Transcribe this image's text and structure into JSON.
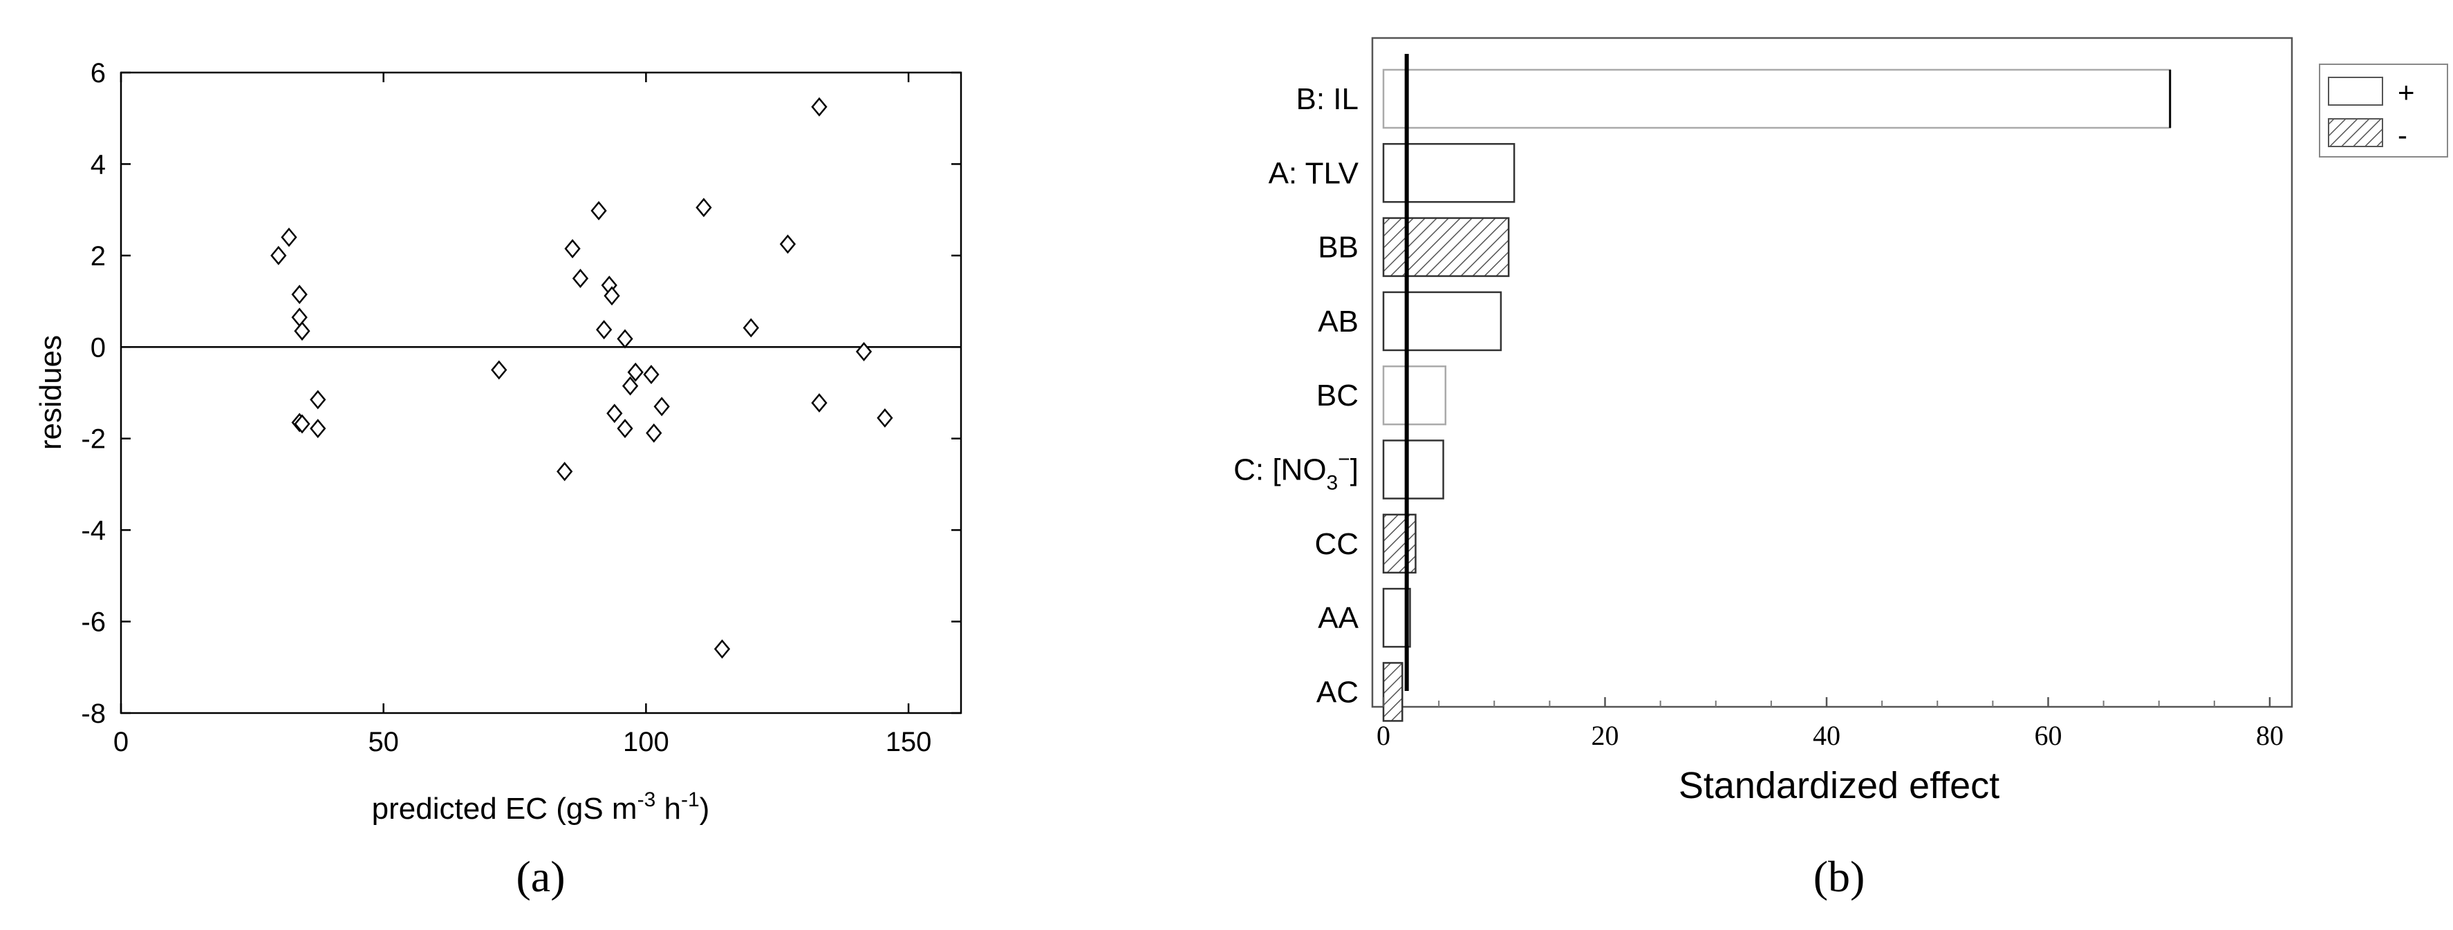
{
  "chart_data": [
    {
      "type": "scatter",
      "panel_label": "(a)",
      "xlabel": "predicted EC (gS m",
      "xlabel_sup1": "-3",
      "xlabel_mid": " h",
      "xlabel_sup2": "-1",
      "xlabel_end": ")",
      "ylabel": "residues",
      "xlim": [
        0,
        160
      ],
      "ylim": [
        -8,
        6
      ],
      "xticks": [
        0,
        50,
        100,
        150
      ],
      "yticks": [
        -8,
        -6,
        -4,
        -2,
        0,
        2,
        4,
        6
      ],
      "reference_line_y": 0,
      "marker": "diamond",
      "points": [
        {
          "x": 30,
          "y": 2.0
        },
        {
          "x": 32,
          "y": 2.4
        },
        {
          "x": 34,
          "y": 1.15
        },
        {
          "x": 34,
          "y": 0.65
        },
        {
          "x": 34.5,
          "y": 0.35
        },
        {
          "x": 34,
          "y": -1.65
        },
        {
          "x": 34.5,
          "y": -1.68
        },
        {
          "x": 37.5,
          "y": -1.15
        },
        {
          "x": 37.5,
          "y": -1.78
        },
        {
          "x": 72,
          "y": -0.5
        },
        {
          "x": 84.5,
          "y": -2.72
        },
        {
          "x": 86,
          "y": 2.15
        },
        {
          "x": 87.5,
          "y": 1.5
        },
        {
          "x": 91,
          "y": 2.98
        },
        {
          "x": 92,
          "y": 0.38
        },
        {
          "x": 93,
          "y": 1.35
        },
        {
          "x": 93.5,
          "y": 1.12
        },
        {
          "x": 94,
          "y": -1.45
        },
        {
          "x": 96,
          "y": 0.18
        },
        {
          "x": 96,
          "y": -1.78
        },
        {
          "x": 97,
          "y": -0.85
        },
        {
          "x": 98,
          "y": -0.55
        },
        {
          "x": 101,
          "y": -0.6
        },
        {
          "x": 101.5,
          "y": -1.88
        },
        {
          "x": 103,
          "y": -1.3
        },
        {
          "x": 111,
          "y": 3.05
        },
        {
          "x": 114.5,
          "y": -6.6
        },
        {
          "x": 120,
          "y": 0.42
        },
        {
          "x": 127,
          "y": 2.25
        },
        {
          "x": 133,
          "y": 5.25
        },
        {
          "x": 133,
          "y": -1.22
        },
        {
          "x": 141.5,
          "y": -0.1
        },
        {
          "x": 145.5,
          "y": -1.55
        }
      ]
    },
    {
      "type": "bar",
      "orientation": "horizontal",
      "panel_label": "(b)",
      "xlabel": "Standardized effect",
      "xlim": [
        -1,
        82
      ],
      "xticks": [
        0,
        20,
        40,
        60,
        80
      ],
      "reference_line_x": 2.1,
      "categories": [
        "B: IL",
        "A: TLV",
        "BB",
        "AB",
        "BC",
        "C: [NO",
        "CC",
        "AA",
        "AC"
      ],
      "category_c_sub": "3",
      "category_c_sup": "−",
      "category_c_end": "]",
      "values": [
        71,
        11.8,
        11.3,
        10.6,
        5.6,
        5.4,
        2.9,
        2.4,
        1.7
      ],
      "signs": [
        "+",
        "+",
        "-",
        "+",
        "+",
        "+",
        "-",
        "+",
        "-"
      ],
      "legend": {
        "position": "top-right",
        "positive": "+",
        "negative": "-"
      }
    }
  ]
}
